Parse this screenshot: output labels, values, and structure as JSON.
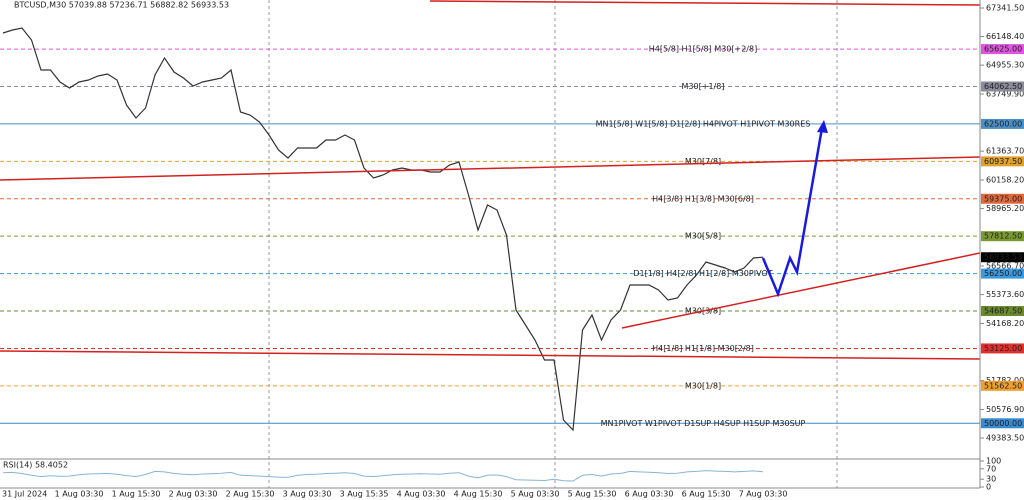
{
  "chart_data": [
    {
      "type": "line",
      "title": "BTCUSD,M30  57039.88 57236.71 56882.82 56933.53",
      "color": "#333333",
      "categories": [
        "31 Jul 2024",
        null,
        null,
        null,
        null,
        null,
        null,
        null,
        "1 Aug 03:30",
        null,
        null,
        null,
        null,
        null,
        "1 Aug 15:30",
        null,
        null,
        null,
        null,
        null,
        "2 Aug 03:30",
        null,
        null,
        null,
        null,
        null,
        "2 Aug 15:30",
        null,
        null,
        null,
        null,
        null,
        "3 Aug 03:30",
        null,
        null,
        null,
        null,
        null,
        "3 Aug 15:35",
        null,
        null,
        null,
        null,
        null,
        "4 Aug 03:30",
        null,
        null,
        null,
        null,
        null,
        "4 Aug 15:30",
        null,
        null,
        null,
        null,
        null,
        "5 Aug 03:30",
        null,
        null,
        null,
        null,
        null,
        "5 Aug 15:30",
        null,
        null,
        null,
        null,
        null,
        "6 Aug 03:30",
        null,
        null,
        null,
        null,
        null,
        "6 Aug 15:30",
        null,
        null,
        null,
        null,
        null,
        "7 Aug 03:30"
      ],
      "values": [
        66297,
        66423,
        66506,
        66005,
        64752,
        64752,
        64251,
        64000,
        64251,
        64335,
        64502,
        64585,
        64335,
        63290,
        62747,
        63165,
        64544,
        65253,
        64669,
        64418,
        64084,
        64251,
        64335,
        64418,
        64752,
        62998,
        62873,
        62580,
        62037,
        61411,
        61077,
        61495,
        61495,
        61495,
        61829,
        61829,
        62037,
        61829,
        60659,
        60242,
        60367,
        60576,
        60659,
        60576,
        60576,
        60492,
        60492,
        60785,
        60910,
        59532,
        58070,
        59114,
        58905,
        57861,
        54729,
        54102,
        53476,
        52641,
        52641,
        50135,
        49718,
        53893,
        54520,
        53476,
        54311,
        54729,
        55773,
        55773,
        55773,
        55564,
        55147,
        55230,
        55773,
        56191,
        56734,
        56608,
        56483,
        56316,
        56483,
        56901,
        56933.53
      ],
      "ylim": [
        48550,
        67675
      ],
      "yticks": [
        {
          "value": 67341.5,
          "label": "67341.50"
        },
        {
          "value": 66148.4,
          "label": "66148.40"
        },
        {
          "value": 64955.3,
          "label": "64955.30"
        },
        {
          "value": 63749.9,
          "label": "63749.90"
        },
        {
          "value": 61363.7,
          "label": "61363.70"
        },
        {
          "value": 60158.2,
          "label": "60158.20"
        },
        {
          "value": 58965.2,
          "label": "58965.20"
        },
        {
          "value": 56566.7,
          "label": "56566.70"
        },
        {
          "value": 55373.6,
          "label": "55373.60"
        },
        {
          "value": 54168.2,
          "label": "54168.20"
        },
        {
          "value": 51782,
          "label": "51782.00"
        },
        {
          "value": 50576.9,
          "label": "50576.90"
        },
        {
          "value": 49383.5,
          "label": "49383.50"
        }
      ],
      "levels": [
        {
          "name": "H4[5/8] H1[5/8] M30[+2/8]",
          "value": 65625,
          "value_label": "65625.00",
          "color": "#e055e0"
        },
        {
          "name": "M30[+1/8]",
          "value": 64062.5,
          "value_label": "64062.50",
          "color": "#8a8a9a"
        },
        {
          "name": "MN1[5/8] W1[5/8] D1[2/8] H4PIVOT H1PIVOT M30RES",
          "value": 62500,
          "value_label": "62500.00",
          "color": "#4a90c8"
        },
        {
          "name": "M30[7/8]",
          "value": 60937.5,
          "value_label": "60937.50",
          "color": "#e0a030"
        },
        {
          "name": "H4[3/8] H1[3/8] M30[6/8]",
          "value": 59375,
          "value_label": "59375.00",
          "color": "#e0683a"
        },
        {
          "name": "M30[5/8]",
          "value": 57812.5,
          "value_label": "57812.50",
          "color": "#7a9a30"
        },
        {
          "name": "D1[1/8] H4[2/8] H1[2/8] M30PIVOT",
          "value": 56250,
          "value_label": "56250.00",
          "color": "#3a9ae0"
        },
        {
          "name": "M30[3/8]",
          "value": 54687.5,
          "value_label": "54687.50",
          "color": "#6a8a30"
        },
        {
          "name": "H4[1/8] H1[1/8] M30[2/8]",
          "value": 53125,
          "value_label": "53125.00",
          "color": "#e03030"
        },
        {
          "name": "M30[1/8]",
          "value": 51562.5,
          "value_label": "51562.50",
          "color": "#f0a030"
        },
        {
          "name": "MN1PIVOT W1PIVOT D1SUP H4SUP H1SUP M30SUP",
          "value": 50000,
          "value_label": "50000.00",
          "color": "#3a8ad0"
        }
      ]
    },
    {
      "type": "line",
      "title": "RSI(14) 58.4052",
      "color": "#87b4d8",
      "values": [
        55,
        56,
        52,
        45,
        40,
        43,
        41,
        42,
        47,
        50,
        51,
        52,
        49,
        44,
        40,
        48,
        60,
        58,
        52,
        49,
        47,
        50,
        51,
        53,
        56,
        45,
        44,
        42,
        40,
        38,
        37,
        45,
        48,
        49,
        52,
        53,
        55,
        52,
        42,
        40,
        44,
        47,
        49,
        50,
        51,
        50,
        49,
        53,
        55,
        42,
        35,
        45,
        46,
        40,
        28,
        27,
        26,
        25,
        30,
        24,
        23,
        45,
        48,
        42,
        50,
        52,
        60,
        58,
        57,
        55,
        52,
        53,
        58,
        60,
        63,
        61,
        60,
        58,
        60,
        62,
        58.4052
      ],
      "ylim": [
        0,
        100
      ],
      "yticks": [
        100,
        70,
        30,
        0
      ]
    }
  ]
}
